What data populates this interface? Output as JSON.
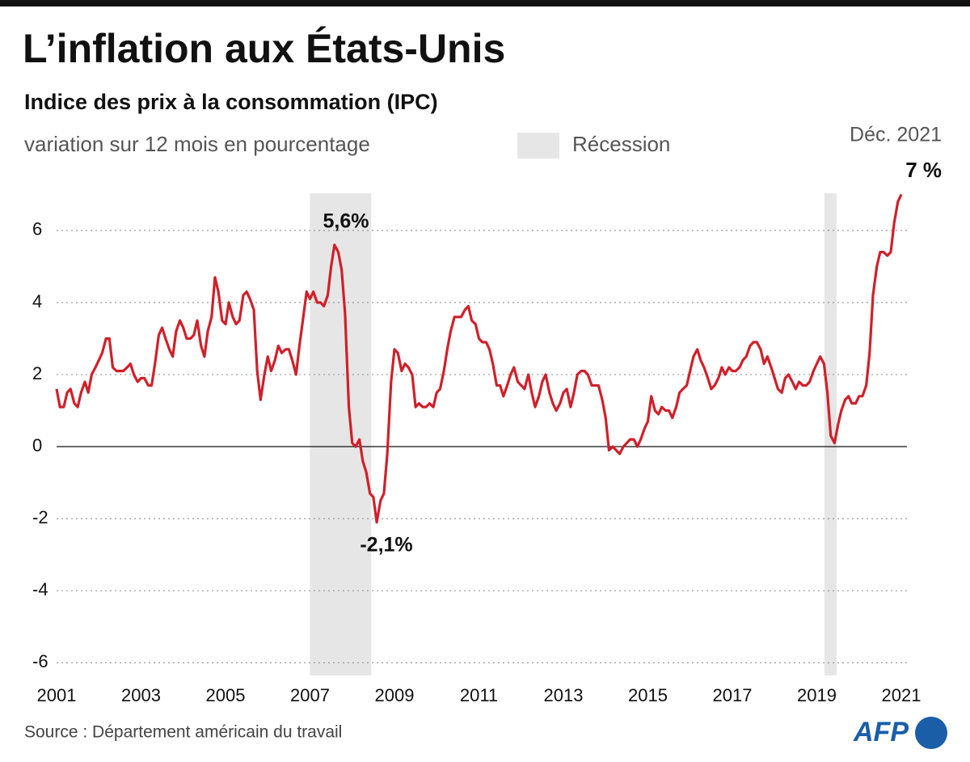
{
  "chart_data": {
    "type": "line",
    "title": "L’inflation aux États-Unis",
    "subtitle": "Indice des prix à la consommation (IPC)",
    "ylabel": "variation sur 12 mois en pourcentage",
    "legend_label": "Récession",
    "recession_color": "#e6e6e6",
    "recessions": [
      [
        2007,
        2008.45
      ],
      [
        2019.18,
        2019.47
      ]
    ],
    "annotations": [
      "5,6%",
      "-2,1%",
      "Déc. 2021",
      "7 %"
    ],
    "source": "Source : Département américain du travail",
    "logo": "AFP",
    "color": "#d0202a",
    "xlim": [
      2001,
      2021
    ],
    "xticks": [
      2001,
      2003,
      2005,
      2007,
      2009,
      2011,
      2013,
      2015,
      2017,
      2019,
      2021
    ],
    "ylim": [
      -6.35,
      7.3
    ],
    "yticks": [
      -6,
      -4,
      -2,
      0,
      2,
      4,
      6
    ],
    "grid": true,
    "x": [
      2001,
      2001.08,
      2001.17,
      2001.25,
      2001.33,
      2001.42,
      2001.5,
      2001.58,
      2001.67,
      2001.75,
      2001.83,
      2001.92,
      2002,
      2002.08,
      2002.17,
      2002.25,
      2002.33,
      2002.42,
      2002.5,
      2002.58,
      2002.67,
      2002.75,
      2002.83,
      2002.92,
      2003,
      2003.08,
      2003.17,
      2003.25,
      2003.33,
      2003.42,
      2003.5,
      2003.58,
      2003.67,
      2003.75,
      2003.83,
      2003.92,
      2004,
      2004.08,
      2004.17,
      2004.25,
      2004.33,
      2004.42,
      2004.5,
      2004.58,
      2004.67,
      2004.75,
      2004.83,
      2004.92,
      2005,
      2005.08,
      2005.17,
      2005.25,
      2005.33,
      2005.42,
      2005.5,
      2005.58,
      2005.67,
      2005.75,
      2005.83,
      2005.92,
      2006,
      2006.08,
      2006.17,
      2006.25,
      2006.33,
      2006.42,
      2006.5,
      2006.58,
      2006.67,
      2006.75,
      2006.83,
      2006.92,
      2007,
      2007.08,
      2007.17,
      2007.25,
      2007.33,
      2007.42,
      2007.5,
      2007.58,
      2007.67,
      2007.75,
      2007.83,
      2007.92,
      2008,
      2008.08,
      2008.17,
      2008.25,
      2008.33,
      2008.42,
      2008.5,
      2008.58,
      2008.67,
      2008.75,
      2008.83,
      2008.92,
      2009,
      2009.08,
      2009.17,
      2009.25,
      2009.33,
      2009.42,
      2009.5,
      2009.58,
      2009.67,
      2009.75,
      2009.83,
      2009.92,
      2010,
      2010.08,
      2010.17,
      2010.25,
      2010.33,
      2010.42,
      2010.5,
      2010.58,
      2010.67,
      2010.75,
      2010.83,
      2010.92,
      2011,
      2011.08,
      2011.17,
      2011.25,
      2011.33,
      2011.42,
      2011.5,
      2011.58,
      2011.67,
      2011.75,
      2011.83,
      2011.92,
      2012,
      2012.08,
      2012.17,
      2012.25,
      2012.33,
      2012.42,
      2012.5,
      2012.58,
      2012.67,
      2012.75,
      2012.83,
      2012.92,
      2013,
      2013.08,
      2013.17,
      2013.25,
      2013.33,
      2013.42,
      2013.5,
      2013.58,
      2013.67,
      2013.75,
      2013.83,
      2013.92,
      2014,
      2014.08,
      2014.17,
      2014.25,
      2014.33,
      2014.42,
      2014.5,
      2014.58,
      2014.67,
      2014.75,
      2014.83,
      2014.92,
      2015,
      2015.08,
      2015.17,
      2015.25,
      2015.33,
      2015.42,
      2015.5,
      2015.58,
      2015.67,
      2015.75,
      2015.83,
      2015.92,
      2016,
      2016.08,
      2016.17,
      2016.25,
      2016.33,
      2016.42,
      2016.5,
      2016.58,
      2016.67,
      2016.75,
      2016.83,
      2016.92,
      2017,
      2017.08,
      2017.17,
      2017.25,
      2017.33,
      2017.42,
      2017.5,
      2017.58,
      2017.67,
      2017.75,
      2017.83,
      2017.92,
      2018,
      2018.08,
      2018.17,
      2018.25,
      2018.33,
      2018.42,
      2018.5,
      2018.58,
      2018.67,
      2018.75,
      2018.83,
      2018.92,
      2019,
      2019.08,
      2019.17,
      2019.25,
      2019.33,
      2019.42,
      2019.5,
      2019.58,
      2019.67,
      2019.75,
      2019.83,
      2019.92,
      2020,
      2020.08,
      2020.17,
      2020.25,
      2020.33,
      2020.42,
      2020.5,
      2020.58,
      2020.67,
      2020.75,
      2020.83,
      2020.92,
      2021
    ],
    "values": [
      1.6,
      1.1,
      1.1,
      1.5,
      1.6,
      1.2,
      1.1,
      1.5,
      1.8,
      1.5,
      2.0,
      2.2,
      2.4,
      2.6,
      3.0,
      3.0,
      2.2,
      2.1,
      2.1,
      2.1,
      2.2,
      2.3,
      2.0,
      1.8,
      1.9,
      1.9,
      1.7,
      1.7,
      2.3,
      3.1,
      3.3,
      3.0,
      2.7,
      2.5,
      3.2,
      3.5,
      3.3,
      3.0,
      3.0,
      3.1,
      3.5,
      2.8,
      2.5,
      3.2,
      3.6,
      4.7,
      4.3,
      3.5,
      3.4,
      4.0,
      3.6,
      3.4,
      3.5,
      4.2,
      4.3,
      4.1,
      3.8,
      2.1,
      1.3,
      2.0,
      2.5,
      2.1,
      2.4,
      2.8,
      2.6,
      2.7,
      2.7,
      2.4,
      2.0,
      2.8,
      3.5,
      4.3,
      4.1,
      4.3,
      4.0,
      4.0,
      3.9,
      4.2,
      5.0,
      5.6,
      5.4,
      4.9,
      3.7,
      1.1,
      0.1,
      0.0,
      0.2,
      -0.4,
      -0.7,
      -1.3,
      -1.4,
      -2.1,
      -1.5,
      -1.3,
      -0.2,
      1.8,
      2.7,
      2.6,
      2.1,
      2.3,
      2.2,
      2.0,
      1.1,
      1.2,
      1.1,
      1.1,
      1.2,
      1.1,
      1.5,
      1.6,
      2.1,
      2.7,
      3.2,
      3.6,
      3.6,
      3.6,
      3.8,
      3.9,
      3.5,
      3.4,
      3.0,
      2.9,
      2.9,
      2.7,
      2.3,
      1.7,
      1.7,
      1.4,
      1.7,
      2.0,
      2.2,
      1.8,
      1.7,
      1.6,
      2.0,
      1.5,
      1.1,
      1.4,
      1.8,
      2.0,
      1.5,
      1.2,
      1.0,
      1.2,
      1.5,
      1.6,
      1.1,
      1.5,
      2.0,
      2.1,
      2.1,
      2.0,
      1.7,
      1.7,
      1.7,
      1.3,
      0.8,
      -0.1,
      0.0,
      -0.1,
      -0.2,
      0.0,
      0.1,
      0.2,
      0.2,
      0.0,
      0.2,
      0.5,
      0.7,
      1.4,
      1.0,
      0.9,
      1.1,
      1.0,
      1.0,
      0.8,
      1.1,
      1.5,
      1.6,
      1.7,
      2.1,
      2.5,
      2.7,
      2.4,
      2.2,
      1.9,
      1.6,
      1.7,
      1.9,
      2.2,
      2.0,
      2.2,
      2.1,
      2.1,
      2.2,
      2.4,
      2.5,
      2.8,
      2.9,
      2.9,
      2.7,
      2.3,
      2.5,
      2.2,
      1.9,
      1.6,
      1.5,
      1.9,
      2.0,
      1.8,
      1.6,
      1.8,
      1.7,
      1.7,
      1.8,
      2.1,
      2.3,
      2.5,
      2.3,
      1.5,
      0.3,
      0.1,
      0.6,
      1.0,
      1.3,
      1.4,
      1.2,
      1.2,
      1.4,
      1.4,
      1.7,
      2.6,
      4.2,
      5.0,
      5.4,
      5.4,
      5.3,
      5.4,
      6.2,
      6.8,
      7.0
    ]
  }
}
